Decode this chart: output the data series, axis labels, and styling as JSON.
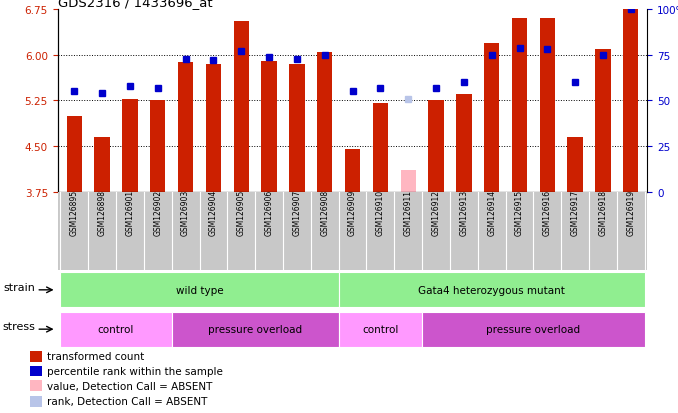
{
  "title": "GDS2316 / 1433696_at",
  "samples": [
    "GSM126895",
    "GSM126898",
    "GSM126901",
    "GSM126902",
    "GSM126903",
    "GSM126904",
    "GSM126905",
    "GSM126906",
    "GSM126907",
    "GSM126908",
    "GSM126909",
    "GSM126910",
    "GSM126911",
    "GSM126912",
    "GSM126913",
    "GSM126914",
    "GSM126915",
    "GSM126916",
    "GSM126917",
    "GSM126918",
    "GSM126919"
  ],
  "bar_values": [
    5.0,
    4.65,
    5.28,
    5.25,
    5.88,
    5.85,
    6.55,
    5.9,
    5.85,
    6.05,
    4.45,
    5.2,
    null,
    5.25,
    5.35,
    6.2,
    6.6,
    6.6,
    4.65,
    6.1,
    6.75
  ],
  "absent_bar_values": [
    null,
    null,
    null,
    null,
    null,
    null,
    null,
    null,
    null,
    null,
    null,
    null,
    4.1,
    null,
    null,
    null,
    null,
    null,
    null,
    null,
    null
  ],
  "rank_values": [
    55,
    54,
    58,
    57,
    73,
    72,
    77,
    74,
    73,
    75,
    55,
    57,
    null,
    57,
    60,
    75,
    79,
    78,
    60,
    75,
    100
  ],
  "absent_rank_values": [
    null,
    null,
    null,
    null,
    null,
    null,
    null,
    null,
    null,
    null,
    null,
    null,
    51,
    null,
    null,
    null,
    null,
    null,
    null,
    null,
    null
  ],
  "ylim": [
    3.75,
    6.75
  ],
  "yticks_left": [
    3.75,
    4.5,
    5.25,
    6.0,
    6.75
  ],
  "yticks_right": [
    0,
    25,
    50,
    75,
    100
  ],
  "bar_color": "#cc2000",
  "rank_color": "#0000cc",
  "absent_bar_color": "#ffb6c1",
  "absent_rank_color": "#b8c4e8",
  "plot_bg": "#ffffff",
  "ytick_left_color": "#cc2000",
  "ytick_right_color": "#0000cc",
  "xtick_bg": "#c8c8c8",
  "strain_groups": [
    {
      "label": "wild type",
      "start": 0,
      "end": 9,
      "color": "#90ee90"
    },
    {
      "label": "Gata4 heterozygous mutant",
      "start": 10,
      "end": 20,
      "color": "#90ee90"
    }
  ],
  "stress_groups": [
    {
      "label": "control",
      "start": 0,
      "end": 3,
      "color": "#ff99ff"
    },
    {
      "label": "pressure overload",
      "start": 4,
      "end": 9,
      "color": "#cc55cc"
    },
    {
      "label": "control",
      "start": 10,
      "end": 12,
      "color": "#ff99ff"
    },
    {
      "label": "pressure overload",
      "start": 13,
      "end": 20,
      "color": "#cc55cc"
    }
  ],
  "legend": [
    {
      "label": "transformed count",
      "color": "#cc2000"
    },
    {
      "label": "percentile rank within the sample",
      "color": "#0000cc"
    },
    {
      "label": "value, Detection Call = ABSENT",
      "color": "#ffb6c1"
    },
    {
      "label": "rank, Detection Call = ABSENT",
      "color": "#b8c4e8"
    }
  ]
}
